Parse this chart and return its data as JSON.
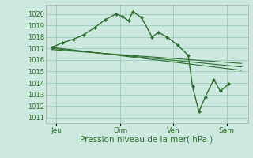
{
  "background_color": "#cce8df",
  "grid_color": "#99ccbb",
  "line_color": "#2d6e2d",
  "marker_color": "#2d6e2d",
  "ylim": [
    1010.5,
    1020.8
  ],
  "yticks": [
    1011,
    1012,
    1013,
    1014,
    1015,
    1016,
    1017,
    1018,
    1019,
    1020
  ],
  "xlabel": "Pression niveau de la mer( hPa )",
  "xlabel_fontsize": 7.5,
  "xtick_labels": [
    "Jeu",
    "Dim",
    "Ven",
    "Sam"
  ],
  "xtick_positions": [
    0.5,
    3.5,
    6.0,
    8.5
  ],
  "xlim": [
    0,
    9.5
  ],
  "main_line": {
    "x": [
      0.3,
      0.8,
      1.3,
      1.8,
      2.3,
      2.8,
      3.3,
      3.6,
      3.9,
      4.1,
      4.5,
      5.0,
      5.3,
      5.7,
      6.2,
      6.7,
      6.9,
      7.2,
      7.5,
      7.9,
      8.2,
      8.6
    ],
    "y": [
      1017.1,
      1017.5,
      1017.8,
      1018.2,
      1018.8,
      1019.5,
      1020.0,
      1019.8,
      1019.4,
      1020.2,
      1019.7,
      1018.0,
      1018.4,
      1018.0,
      1017.3,
      1016.4,
      1013.7,
      1011.5,
      1012.8,
      1014.3,
      1013.3,
      1013.9
    ]
  },
  "diag_lines": [
    {
      "x": [
        0.3,
        9.2
      ],
      "y": [
        1017.1,
        1015.1
      ]
    },
    {
      "x": [
        0.3,
        9.2
      ],
      "y": [
        1017.0,
        1015.4
      ]
    },
    {
      "x": [
        0.3,
        9.2
      ],
      "y": [
        1016.9,
        1015.7
      ]
    }
  ],
  "ytick_fontsize": 6.0,
  "xtick_fontsize": 6.5
}
